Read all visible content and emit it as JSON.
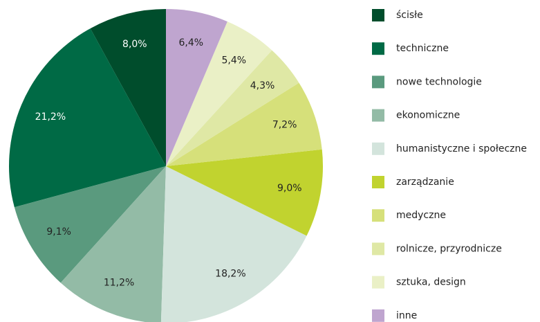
{
  "chart_data": {
    "type": "pie",
    "categories": [
      "ścisłe",
      "techniczne",
      "nowe technologie",
      "ekonomiczne",
      "humanistyczne i społeczne",
      "zarządzanie",
      "medyczne",
      "rolnicze, przyrodnicze",
      "sztuka, design",
      "inne"
    ],
    "values": [
      8.0,
      21.2,
      9.1,
      11.2,
      18.2,
      9.0,
      7.2,
      4.3,
      5.4,
      6.4
    ],
    "value_labels": [
      "8,0%",
      "21,2%",
      "9,1%",
      "11,2%",
      "18,2%",
      "9,0%",
      "7,2%",
      "4,3%",
      "5,4%",
      "6,4%"
    ],
    "colors": [
      "#004d2c",
      "#006a45",
      "#5a9a7e",
      "#93bba6",
      "#d3e4dc",
      "#c1d32f",
      "#d6e07a",
      "#dfe8a5",
      "#eaf0c6",
      "#bfa5cf"
    ],
    "legend": "right"
  }
}
